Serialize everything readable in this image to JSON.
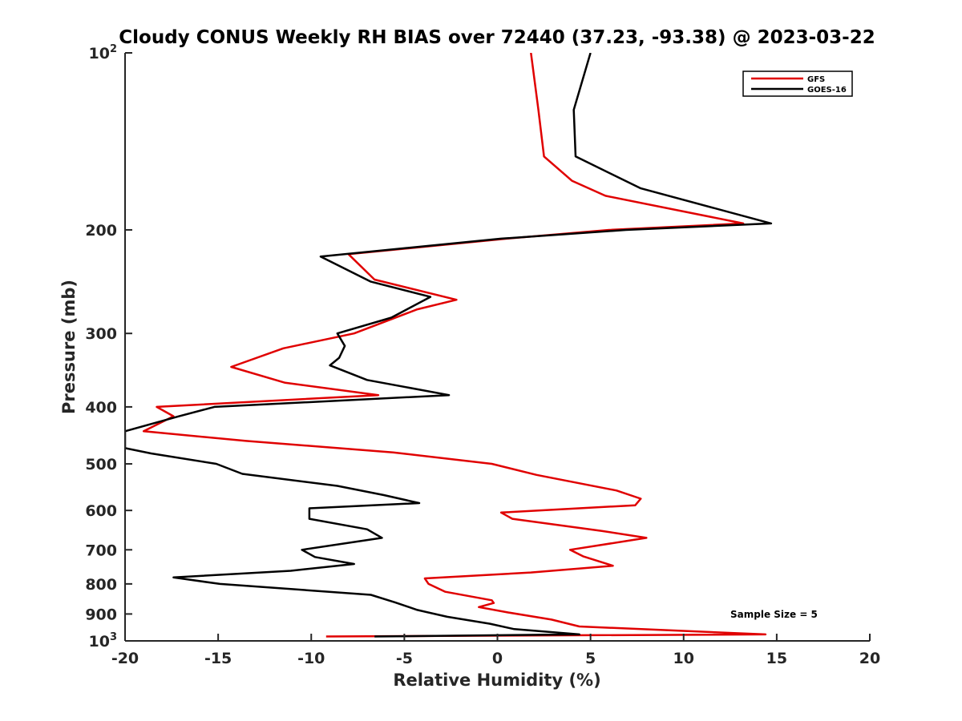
{
  "chart_data": {
    "type": "line",
    "title": "Cloudy CONUS Weekly RH BIAS over 72440 (37.23, -93.38) @ 2023-03-22",
    "xlabel": "Relative Humidity (%)",
    "ylabel": "Pressure (mb)",
    "xlim": [
      -20,
      20
    ],
    "ylim": [
      100,
      1000
    ],
    "y_scale": "log",
    "y_reversed": true,
    "grid": false,
    "legend_position": "top-right",
    "x_ticks": [
      -20,
      -15,
      -10,
      -5,
      0,
      5,
      10,
      15,
      20
    ],
    "x_tick_labels": [
      "-20",
      "-15",
      "-10",
      "-5",
      "0",
      "5",
      "10",
      "15",
      "20"
    ],
    "y_ticks": [
      {
        "value": 100,
        "base": "10",
        "exp": "2"
      },
      {
        "value": 200,
        "label": "200"
      },
      {
        "value": 300,
        "label": "300"
      },
      {
        "value": 400,
        "label": "400"
      },
      {
        "value": 500,
        "label": "500"
      },
      {
        "value": 600,
        "label": "600"
      },
      {
        "value": 700,
        "label": "700"
      },
      {
        "value": 800,
        "label": "800"
      },
      {
        "value": 900,
        "label": "900"
      },
      {
        "value": 1000,
        "base": "10",
        "exp": "3"
      }
    ],
    "annotation": "Sample Size = 5",
    "series": [
      {
        "name": "GFS",
        "color": "#e00000",
        "points": [
          [
            1.8,
            100
          ],
          [
            2.2,
            125
          ],
          [
            2.5,
            150
          ],
          [
            4.0,
            165
          ],
          [
            5.8,
            175
          ],
          [
            13.2,
            195
          ],
          [
            6.0,
            200
          ],
          [
            0.5,
            207
          ],
          [
            -8.0,
            220
          ],
          [
            -6.6,
            243
          ],
          [
            -2.2,
            263
          ],
          [
            -4.3,
            273
          ],
          [
            -7.7,
            300
          ],
          [
            -11.5,
            318
          ],
          [
            -14.3,
            342
          ],
          [
            -11.4,
            364
          ],
          [
            -6.4,
            382
          ],
          [
            -18.3,
            400
          ],
          [
            -17.4,
            415
          ],
          [
            -19.0,
            440
          ],
          [
            -13.5,
            457
          ],
          [
            -5.6,
            478
          ],
          [
            -0.3,
            500
          ],
          [
            2.1,
            522
          ],
          [
            6.4,
            555
          ],
          [
            7.7,
            573
          ],
          [
            7.4,
            588
          ],
          [
            0.2,
            605
          ],
          [
            0.8,
            620
          ],
          [
            5.6,
            650
          ],
          [
            8.0,
            668
          ],
          [
            3.9,
            700
          ],
          [
            4.6,
            718
          ],
          [
            6.2,
            745
          ],
          [
            1.8,
            765
          ],
          [
            -3.9,
            783
          ],
          [
            -3.7,
            800
          ],
          [
            -2.8,
            825
          ],
          [
            -0.3,
            853
          ],
          [
            -0.2,
            862
          ],
          [
            -1.0,
            876
          ],
          [
            0.6,
            895
          ],
          [
            2.9,
            920
          ],
          [
            4.4,
            945
          ],
          [
            14.4,
            975
          ],
          [
            -9.2,
            983
          ]
        ]
      },
      {
        "name": "GOES-16",
        "color": "#000000",
        "points": [
          [
            5.0,
            100
          ],
          [
            4.1,
            125
          ],
          [
            4.2,
            150
          ],
          [
            7.7,
            170
          ],
          [
            14.7,
            195
          ],
          [
            6.9,
            200
          ],
          [
            0.2,
            207
          ],
          [
            -9.5,
            222
          ],
          [
            -6.8,
            245
          ],
          [
            -3.6,
            260
          ],
          [
            -5.7,
            282
          ],
          [
            -8.6,
            300
          ],
          [
            -8.2,
            315
          ],
          [
            -8.5,
            330
          ],
          [
            -9.0,
            340
          ],
          [
            -7.0,
            360
          ],
          [
            -2.6,
            382
          ],
          [
            -15.2,
            400
          ],
          [
            -17.1,
            415
          ],
          [
            -20.0,
            440
          ],
          [
            -20.0,
            470
          ],
          [
            -18.6,
            480
          ],
          [
            -15.1,
            500
          ],
          [
            -13.7,
            520
          ],
          [
            -8.6,
            545
          ],
          [
            -6.1,
            565
          ],
          [
            -4.2,
            583
          ],
          [
            -10.1,
            595
          ],
          [
            -10.1,
            620
          ],
          [
            -7.0,
            646
          ],
          [
            -6.2,
            668
          ],
          [
            -10.5,
            700
          ],
          [
            -9.8,
            720
          ],
          [
            -7.7,
            740
          ],
          [
            -11.1,
            760
          ],
          [
            -17.4,
            780
          ],
          [
            -14.9,
            800
          ],
          [
            -6.8,
            835
          ],
          [
            -5.5,
            860
          ],
          [
            -4.3,
            886
          ],
          [
            -2.7,
            910
          ],
          [
            -0.4,
            935
          ],
          [
            0.9,
            955
          ],
          [
            4.4,
            975
          ],
          [
            -6.6,
            983
          ]
        ]
      }
    ]
  }
}
